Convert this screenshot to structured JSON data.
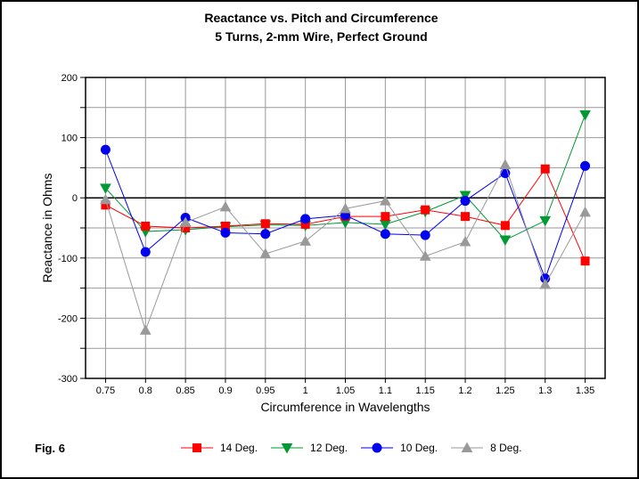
{
  "window": {
    "background": "#FFFFFF",
    "border_color": "#000000"
  },
  "title": {
    "line1": "Reactance vs. Pitch and Circumference",
    "line2": "5 Turns, 2-mm Wire, Perfect Ground"
  },
  "figure_label": "Fig. 6",
  "chart_data": {
    "type": "line",
    "title": "Reactance vs. Pitch and Circumference",
    "subtitle": "5 Turns, 2-mm Wire, Perfect Ground",
    "xlabel": "Circumference in Wavelengths",
    "ylabel": "Reactance in Ohms",
    "x_tick_labels": [
      "0.75",
      "0.8",
      "0.85",
      "0.9",
      "0.95",
      "1",
      "1.05",
      "1.1",
      "1.15",
      "1.2",
      "1.25",
      "1.3",
      "1.35"
    ],
    "x": [
      0.75,
      0.8,
      0.85,
      0.9,
      0.95,
      1.0,
      1.05,
      1.1,
      1.15,
      1.2,
      1.25,
      1.3,
      1.35
    ],
    "ylim": [
      -300,
      200
    ],
    "y_major_step": 100,
    "y_minor_step": 50,
    "y_tick_labels": [
      "200",
      "100",
      "0",
      "-100",
      "-200",
      "-300"
    ],
    "grid": true,
    "grid_color": "#999999",
    "axis_color": "#000000",
    "zero_line": true,
    "legend_position": "bottom",
    "series": [
      {
        "name": "14 Deg.",
        "color": "#FF0000",
        "marker": "square",
        "values": [
          -12,
          -47,
          -50,
          -47,
          -43,
          -44,
          -31,
          -31,
          -20,
          -31,
          -46,
          48,
          -105
        ]
      },
      {
        "name": "12 Deg.",
        "color": "#009933",
        "marker": "triangle-down",
        "values": [
          16,
          -56,
          -53,
          -48,
          -45,
          -46,
          -41,
          -44,
          -23,
          4,
          -70,
          -38,
          138
        ]
      },
      {
        "name": "10 Deg.",
        "color": "#0000EE",
        "marker": "circle",
        "values": [
          80,
          -90,
          -33,
          -58,
          -60,
          -35,
          -29,
          -60,
          -62,
          -5,
          41,
          -134,
          53
        ]
      },
      {
        "name": "8 Deg.",
        "color": "#999999",
        "marker": "triangle-up",
        "values": [
          -3,
          -220,
          -41,
          -15,
          -93,
          -72,
          -18,
          -5,
          -97,
          -73,
          55,
          -144,
          -24
        ]
      }
    ]
  }
}
